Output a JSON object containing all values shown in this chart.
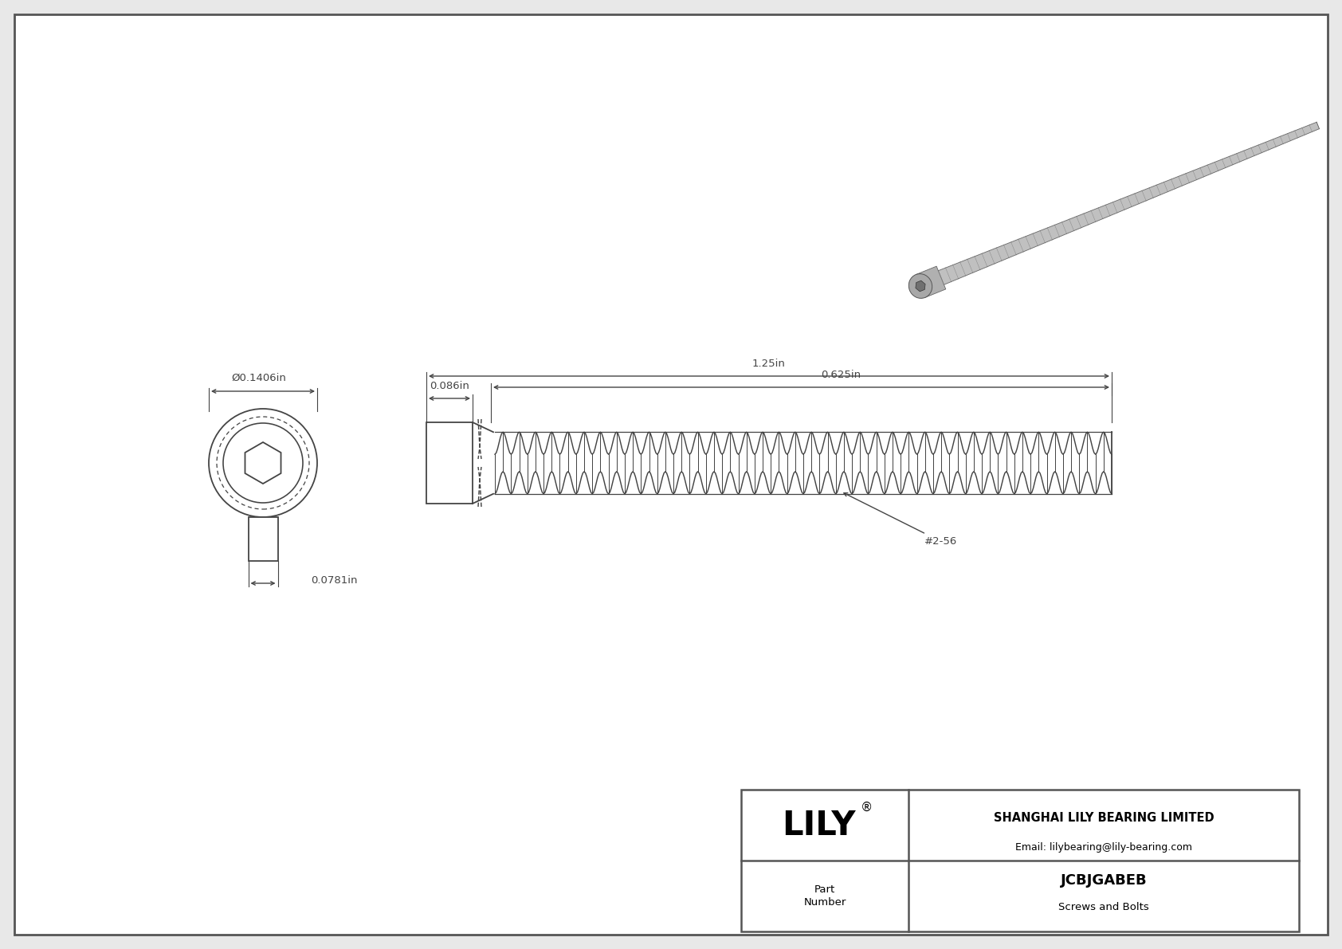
{
  "bg_color": "#e8e8e8",
  "drawing_bg": "#ffffff",
  "line_color": "#444444",
  "dim_color": "#444444",
  "title_company": "SHANGHAI LILY BEARING LIMITED",
  "title_email": "Email: lilybearing@lily-bearing.com",
  "part_number": "JCBJGABEB",
  "part_type": "Screws and Bolts",
  "logo_text": "LILY",
  "dim_diameter": "Ø0.1406in",
  "dim_neck": "0.0781in",
  "dim_head": "0.086in",
  "dim_total": "1.25in",
  "dim_thread": "0.625in",
  "thread_label": "#2-56",
  "border_color": "#555555"
}
